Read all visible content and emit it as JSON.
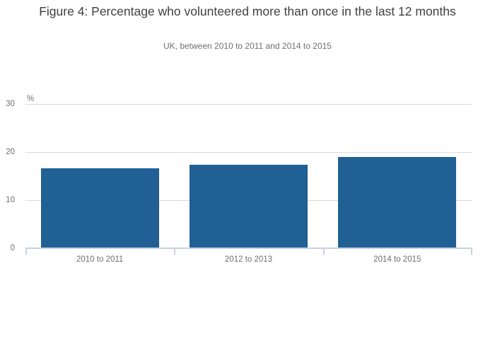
{
  "chart_data": {
    "type": "bar",
    "title": "Figure 4: Percentage who volunteered more than once in the last 12 months",
    "subtitle": "UK, between 2010 to 2011 and 2014 to 2015",
    "categories": [
      "2010 to 2011",
      "2012 to 2013",
      "2014 to 2015"
    ],
    "values": [
      16.6,
      17.3,
      19.0
    ],
    "xlabel": "",
    "ylabel": "%",
    "ylim": [
      0,
      30
    ],
    "yticks": [
      0,
      10,
      20,
      30
    ],
    "grid": true,
    "legend": "none",
    "colors": {
      "bar": "#206095",
      "gridline": "#d9d9d9",
      "axis_line": "#c5d1e0",
      "title_text": "#404041",
      "subtitle_text": "#6f6f6f",
      "axis_label_text": "#6f6f6f"
    }
  }
}
